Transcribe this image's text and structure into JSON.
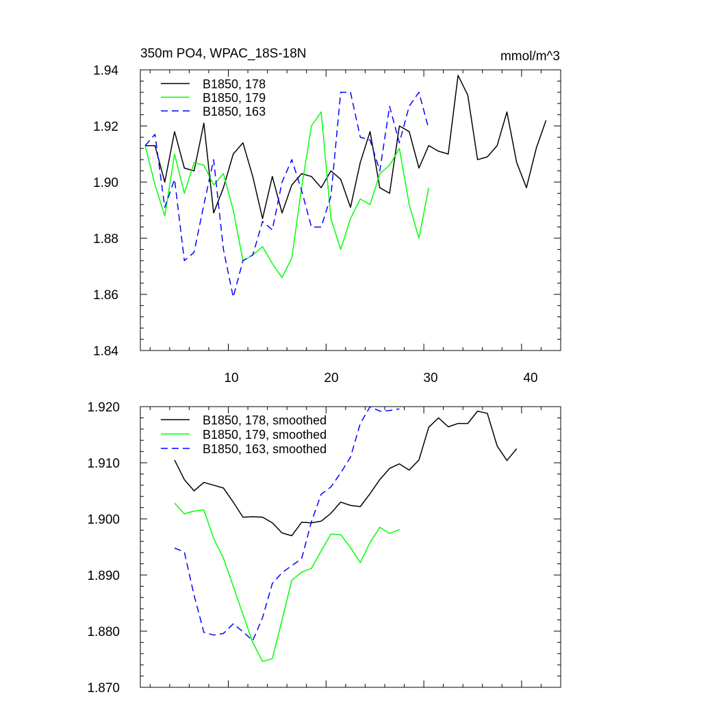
{
  "chart_data": [
    {
      "type": "line",
      "title": "350m PO4, WPAC_18S-18N",
      "units": "mmol/m^3",
      "xlim": [
        1,
        44
      ],
      "ylim": [
        1.84,
        1.94
      ],
      "y_ticks": [
        "1.84",
        "1.86",
        "1.88",
        "1.90",
        "1.92",
        "1.94"
      ],
      "x_ticks": [
        "10",
        "20",
        "30",
        "40"
      ],
      "legend_position": "top-left",
      "series": [
        {
          "name": "B1850, 178",
          "color": "#000000",
          "dash": "solid",
          "x": [
            1.5,
            2.5,
            3.5,
            4.5,
            5.5,
            6.5,
            7.5,
            8.5,
            9.5,
            10.5,
            11.5,
            12.5,
            13.5,
            14.5,
            15.5,
            16.5,
            17.5,
            18.5,
            19.5,
            20.5,
            21.5,
            22.5,
            23.5,
            24.5,
            25.5,
            26.5,
            27.5,
            28.5,
            29.5,
            30.5,
            31.5,
            32.5,
            33.5,
            34.5,
            35.5,
            36.5,
            37.5,
            38.5,
            39.5,
            40.5,
            41.5,
            42.5
          ],
          "values": [
            1.913,
            1.913,
            1.9,
            1.918,
            1.905,
            1.904,
            1.921,
            1.889,
            1.898,
            1.91,
            1.914,
            1.902,
            1.887,
            1.902,
            1.889,
            1.899,
            1.903,
            1.902,
            1.898,
            1.904,
            1.901,
            1.891,
            1.907,
            1.918,
            1.898,
            1.896,
            1.92,
            1.918,
            1.905,
            1.913,
            1.911,
            1.91,
            1.938,
            1.931,
            1.908,
            1.909,
            1.913,
            1.925,
            1.907,
            1.898,
            1.912,
            1.922
          ]
        },
        {
          "name": "B1850, 179",
          "color": "#00ff00",
          "dash": "solid",
          "x": [
            1.5,
            2.5,
            3.5,
            4.5,
            5.5,
            6.5,
            7.5,
            8.5,
            9.5,
            10.5,
            11.5,
            12.5,
            13.5,
            14.5,
            15.5,
            16.5,
            17.5,
            18.5,
            19.5,
            20.5,
            21.5,
            22.5,
            23.5,
            24.5,
            25.5,
            26.5,
            27.5,
            28.5,
            29.5,
            30.5
          ],
          "values": [
            1.913,
            1.899,
            1.888,
            1.91,
            1.896,
            1.907,
            1.906,
            1.899,
            1.903,
            1.89,
            1.872,
            1.874,
            1.877,
            1.871,
            1.866,
            1.873,
            1.898,
            1.92,
            1.925,
            1.887,
            1.876,
            1.887,
            1.894,
            1.892,
            1.903,
            1.906,
            1.912,
            1.892,
            1.88,
            1.898
          ]
        },
        {
          "name": "B1850, 163",
          "color": "#0000ff",
          "dash": "dashed",
          "x": [
            1.5,
            2.5,
            3.5,
            4.5,
            5.5,
            6.5,
            7.5,
            8.5,
            9.5,
            10.5,
            11.5,
            12.5,
            13.5,
            14.5,
            15.5,
            16.5,
            17.5,
            18.5,
            19.5,
            20.5,
            21.5,
            22.5,
            23.5,
            24.5,
            25.5,
            26.5,
            27.5,
            28.5,
            29.5,
            30.5
          ],
          "values": [
            1.913,
            1.917,
            1.891,
            1.901,
            1.872,
            1.875,
            1.892,
            1.908,
            1.876,
            1.859,
            1.872,
            1.874,
            1.886,
            1.883,
            1.9,
            1.908,
            1.897,
            1.884,
            1.884,
            1.895,
            1.932,
            1.932,
            1.916,
            1.915,
            1.904,
            1.927,
            1.914,
            1.927,
            1.932,
            1.919
          ]
        }
      ]
    },
    {
      "type": "line",
      "ylim": [
        1.87,
        1.92
      ],
      "xlim": [
        1,
        44
      ],
      "y_ticks": [
        "1.870",
        "1.880",
        "1.890",
        "1.900",
        "1.910",
        "1.920"
      ],
      "legend_position": "top-left",
      "series": [
        {
          "name": "B1850, 178, smoothed",
          "color": "#000000",
          "dash": "solid",
          "x": [
            4.5,
            5.5,
            6.5,
            7.5,
            8.5,
            9.5,
            10.5,
            11.5,
            12.5,
            13.5,
            14.5,
            15.5,
            16.5,
            17.5,
            18.5,
            19.5,
            20.5,
            21.5,
            22.5,
            23.5,
            24.5,
            25.5,
            26.5,
            27.5,
            28.5,
            29.5,
            30.5,
            31.5,
            32.5,
            33.5,
            34.5,
            35.5,
            36.5,
            37.5,
            38.5,
            39.5
          ],
          "values": [
            1.9105,
            1.907,
            1.905,
            1.9065,
            1.906,
            1.9055,
            1.903,
            1.9003,
            1.9004,
            1.9003,
            1.8993,
            1.8975,
            1.897,
            1.8994,
            1.8993,
            1.8996,
            1.901,
            1.903,
            1.9024,
            1.9022,
            1.9045,
            1.907,
            1.909,
            1.9098,
            1.9087,
            1.9105,
            1.9163,
            1.918,
            1.9164,
            1.917,
            1.917,
            1.9192,
            1.9188,
            1.913,
            1.9104,
            1.9125
          ]
        },
        {
          "name": "B1850, 179, smoothed",
          "color": "#00ff00",
          "dash": "solid",
          "x": [
            4.5,
            5.5,
            6.5,
            7.5,
            8.5,
            9.5,
            10.5,
            11.5,
            12.5,
            13.5,
            14.5,
            15.5,
            16.5,
            17.5,
            18.5,
            19.5,
            20.5,
            21.5,
            22.5,
            23.5,
            24.5,
            25.5,
            26.5,
            27.5
          ],
          "values": [
            1.9028,
            1.9009,
            1.9014,
            1.9016,
            1.8965,
            1.893,
            1.888,
            1.883,
            1.878,
            1.8746,
            1.8751,
            1.882,
            1.8891,
            1.8905,
            1.8912,
            1.8943,
            1.8973,
            1.8972,
            1.8949,
            1.8922,
            1.8958,
            1.8985,
            1.8974,
            1.8981
          ]
        },
        {
          "name": "B1850, 163, smoothed",
          "color": "#0000ff",
          "dash": "dashed",
          "x": [
            4.5,
            5.5,
            6.5,
            7.5,
            8.5,
            9.5,
            10.5,
            11.5,
            12.5,
            13.5,
            14.5,
            15.5,
            16.5,
            17.5,
            18.5,
            19.5,
            20.5,
            21.5,
            22.5,
            23.5,
            24.5,
            25.5,
            26.5,
            27.5
          ],
          "values": [
            1.8948,
            1.8941,
            1.8864,
            1.8798,
            1.8793,
            1.8796,
            1.8813,
            1.8799,
            1.8783,
            1.8824,
            1.8885,
            1.8904,
            1.8917,
            1.8929,
            1.8995,
            1.9044,
            1.9057,
            1.9082,
            1.911,
            1.917,
            1.92,
            1.9192,
            1.9193,
            1.9196
          ]
        }
      ]
    }
  ]
}
